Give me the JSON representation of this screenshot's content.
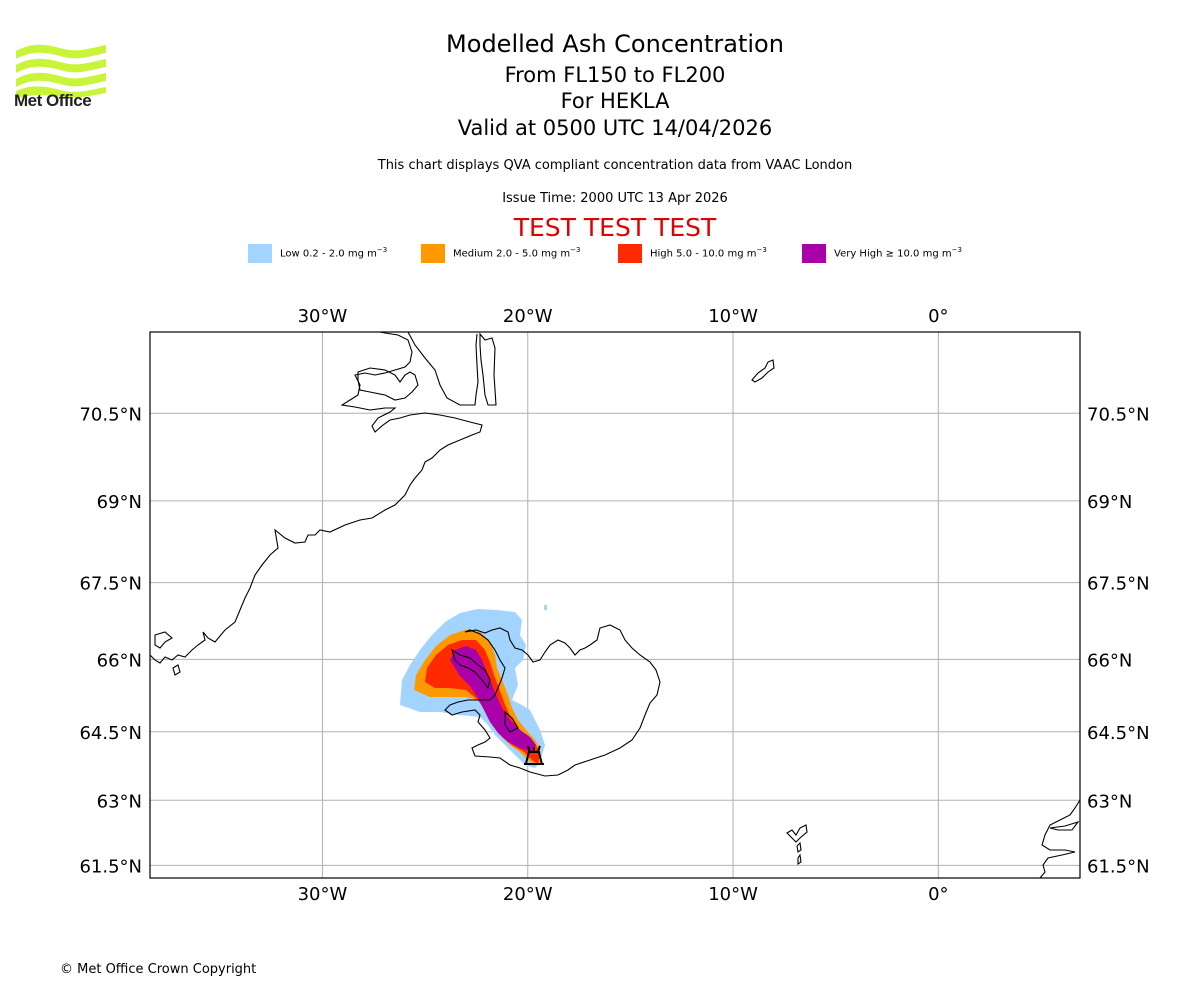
{
  "header": {
    "logo_text": "Met Office",
    "title": "Modelled Ash Concentration",
    "flight_levels": "From FL150 to FL200",
    "volcano": "For HEKLA",
    "valid_time": "Valid at 0500 UTC 14/04/2026",
    "description": "This chart displays QVA compliant concentration data from VAAC London",
    "issue_time": "Issue Time: 2000 UTC 13 Apr 2026",
    "test_banner": "TEST TEST TEST"
  },
  "legend": [
    {
      "label": "Low 0.2 - 2.0 mg m",
      "exp": "−3",
      "color": "#a3d3ff"
    },
    {
      "label": "Medium 2.0 - 5.0 mg m",
      "exp": "−3",
      "color": "#ff9900"
    },
    {
      "label": "High 5.0 - 10.0 mg m",
      "exp": "−3",
      "color": "#ff2a00"
    },
    {
      "label": "Very High ≥ 10.0 mg m",
      "exp": "−3",
      "color": "#aa00aa"
    }
  ],
  "map": {
    "lon_range": [
      -38.4,
      6.9
    ],
    "lat_range": [
      61.2,
      71.8
    ],
    "lon_ticks": [
      {
        "value": -30,
        "label": "30°W"
      },
      {
        "value": -20,
        "label": "20°W"
      },
      {
        "value": -10,
        "label": "10°W"
      },
      {
        "value": 0,
        "label": "0°"
      }
    ],
    "lat_ticks": [
      {
        "value": 70.5,
        "label": "70.5°N"
      },
      {
        "value": 69,
        "label": "69°N"
      },
      {
        "value": 67.5,
        "label": "67.5°N"
      },
      {
        "value": 66,
        "label": "66°N"
      },
      {
        "value": 64.5,
        "label": "64.5°N"
      },
      {
        "value": 63,
        "label": "63°N"
      },
      {
        "value": 61.5,
        "label": "61.5°N"
      }
    ],
    "grid_color": "#b0b0b0",
    "volcano_marker": {
      "name": "HEKLA",
      "lon": -19.7,
      "lat": 63.98
    },
    "regions": [
      "Greenland",
      "Iceland",
      "Jan Mayen",
      "Faroe Islands",
      "Norway"
    ]
  },
  "footer": {
    "copyright": "© Met Office Crown Copyright"
  }
}
